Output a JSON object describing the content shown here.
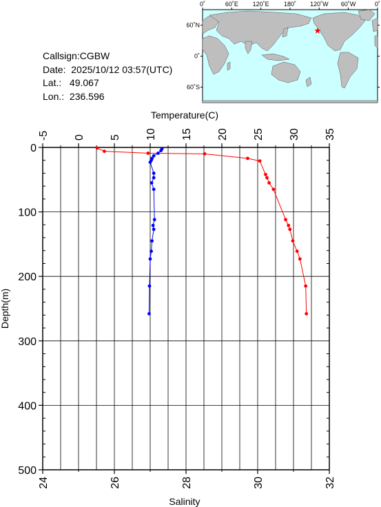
{
  "station": {
    "callsign_label": "Callsign:",
    "callsign": "CGBW",
    "date_label": "Date:",
    "date": "2025/10/12 03:57(UTC)",
    "lat_label": "Lat.:",
    "lat": "49.067",
    "lon_label": "Lon.:",
    "lon": "236.596"
  },
  "map": {
    "lon_ticks": [
      "0˚",
      "60˚E",
      "120˚E",
      "180˚",
      "120˚W",
      "60˚W",
      "0˚"
    ],
    "lat_ticks": [
      "60˚N",
      "0˚",
      "60˚S"
    ],
    "ocean_color": "#ccffff",
    "land_color": "#bebebe",
    "marker_color": "#ff0000",
    "marker_icon": "star-icon"
  },
  "chart_data": {
    "type": "line",
    "top_axis": {
      "label": "Temperature(C)",
      "range": [
        -5,
        35
      ],
      "ticks": [
        "-5",
        "0",
        "5",
        "10",
        "15",
        "20",
        "25",
        "30",
        "35"
      ]
    },
    "bottom_axis": {
      "label": "Salinity",
      "range": [
        24,
        32
      ],
      "ticks": [
        "24",
        "26",
        "28",
        "30",
        "32"
      ]
    },
    "y_axis": {
      "label": "Depth(m)",
      "range": [
        0,
        500
      ],
      "inverted": true,
      "ticks": [
        "0",
        "100",
        "200",
        "300",
        "400",
        "500"
      ]
    },
    "grid": true,
    "series": [
      {
        "color": "#ff0000",
        "axis": "top",
        "points": [
          {
            "x": 2.6,
            "y": 1
          },
          {
            "x": 3.6,
            "y": 6
          },
          {
            "x": 9.7,
            "y": 9
          },
          {
            "x": 17.6,
            "y": 10
          },
          {
            "x": 23.6,
            "y": 17
          },
          {
            "x": 25.3,
            "y": 21
          },
          {
            "x": 26.1,
            "y": 42
          },
          {
            "x": 26.3,
            "y": 47
          },
          {
            "x": 26.6,
            "y": 55
          },
          {
            "x": 27.2,
            "y": 65
          },
          {
            "x": 28.9,
            "y": 112
          },
          {
            "x": 29.3,
            "y": 121
          },
          {
            "x": 29.5,
            "y": 127
          },
          {
            "x": 29.9,
            "y": 145
          },
          {
            "x": 30.5,
            "y": 161
          },
          {
            "x": 30.9,
            "y": 173
          },
          {
            "x": 31.7,
            "y": 215
          },
          {
            "x": 31.8,
            "y": 258
          }
        ]
      },
      {
        "color": "#0000ff",
        "axis": "bottom",
        "points": [
          {
            "x": 27.33,
            "y": 2
          },
          {
            "x": 27.3,
            "y": 5
          },
          {
            "x": 27.22,
            "y": 9
          },
          {
            "x": 27.1,
            "y": 13
          },
          {
            "x": 27.05,
            "y": 17
          },
          {
            "x": 27.03,
            "y": 20
          },
          {
            "x": 27.0,
            "y": 23
          },
          {
            "x": 27.1,
            "y": 40
          },
          {
            "x": 27.1,
            "y": 47
          },
          {
            "x": 27.04,
            "y": 55
          },
          {
            "x": 27.1,
            "y": 65
          },
          {
            "x": 27.12,
            "y": 112
          },
          {
            "x": 27.08,
            "y": 121
          },
          {
            "x": 27.1,
            "y": 127
          },
          {
            "x": 27.05,
            "y": 145
          },
          {
            "x": 27.03,
            "y": 161
          },
          {
            "x": 27.0,
            "y": 173
          },
          {
            "x": 26.98,
            "y": 215
          },
          {
            "x": 26.97,
            "y": 258
          }
        ]
      }
    ]
  }
}
